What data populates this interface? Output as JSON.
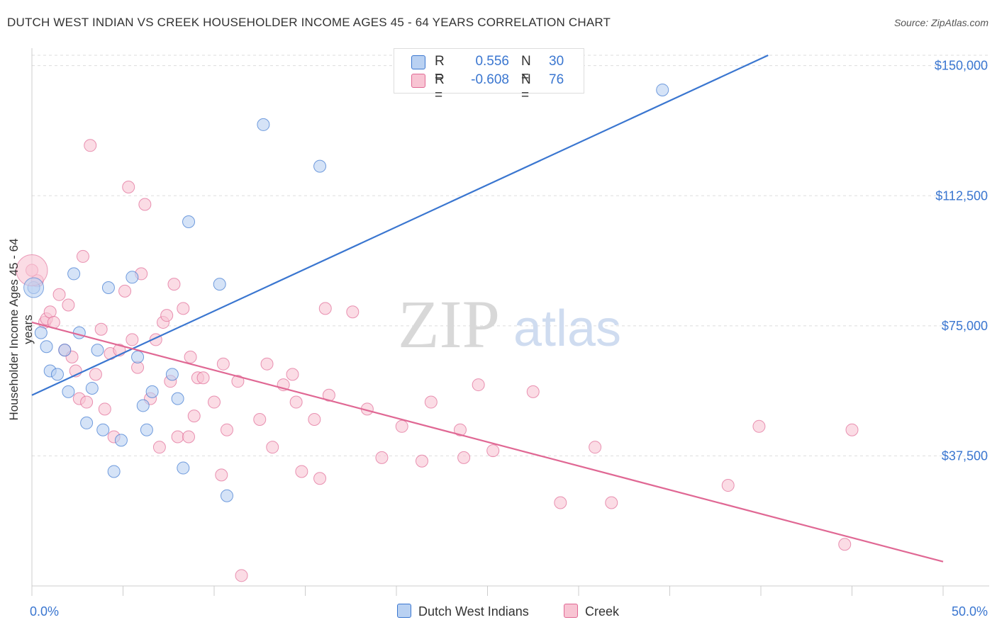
{
  "title": "DUTCH WEST INDIAN VS CREEK HOUSEHOLDER INCOME AGES 45 - 64 YEARS CORRELATION CHART",
  "source": "Source: ZipAtlas.com",
  "watermark": {
    "zip": "ZIP",
    "atlas": "atlas"
  },
  "colors": {
    "blue": "#3a76d0",
    "blue_fill": "#b9d1f2",
    "pink": "#e06894",
    "pink_fill": "#f8c4d3",
    "axis_text_blue": "#3a76d0",
    "grid": "#dddddd"
  },
  "legend": {
    "rows": [
      {
        "r_label": "R =",
        "r_value": "0.556",
        "n_label": "N =",
        "n_value": "30"
      },
      {
        "r_label": "R =",
        "r_value": "-0.608",
        "n_label": "N =",
        "n_value": "76"
      }
    ]
  },
  "bottom_legend": [
    "Dutch West Indians",
    "Creek"
  ],
  "chart_data": {
    "type": "scatter",
    "title": "DUTCH WEST INDIAN VS CREEK HOUSEHOLDER INCOME AGES 45 - 64 YEARS CORRELATION CHART",
    "xlabel": "",
    "ylabel": "Householder Income Ages 45 - 64 years",
    "xlim": [
      0,
      50
    ],
    "ylim": [
      0,
      153000
    ],
    "x_tick_labels": [
      "0.0%",
      "50.0%"
    ],
    "y_ticks": [
      37500,
      75000,
      112500,
      150000
    ],
    "y_tick_labels": [
      "$37,500",
      "$75,000",
      "$112,500",
      "$150,000"
    ],
    "series": [
      {
        "name": "Dutch West Indians",
        "r": 0.556,
        "n": 30,
        "trend": {
          "x": [
            0,
            40.4
          ],
          "y": [
            55000,
            153000
          ]
        },
        "points": [
          [
            0.1,
            86000
          ],
          [
            0.5,
            73000
          ],
          [
            0.8,
            69000
          ],
          [
            1.0,
            62000
          ],
          [
            1.4,
            61000
          ],
          [
            1.8,
            68000
          ],
          [
            2.0,
            56000
          ],
          [
            2.3,
            90000
          ],
          [
            2.6,
            73000
          ],
          [
            3.0,
            47000
          ],
          [
            3.3,
            57000
          ],
          [
            3.6,
            68000
          ],
          [
            3.9,
            45000
          ],
          [
            4.2,
            86000
          ],
          [
            4.5,
            33000
          ],
          [
            4.9,
            42000
          ],
          [
            5.5,
            89000
          ],
          [
            5.8,
            66000
          ],
          [
            6.1,
            52000
          ],
          [
            6.3,
            45000
          ],
          [
            6.6,
            56000
          ],
          [
            7.7,
            61000
          ],
          [
            8.0,
            54000
          ],
          [
            8.3,
            34000
          ],
          [
            8.6,
            105000
          ],
          [
            10.3,
            87000
          ],
          [
            10.7,
            26000
          ],
          [
            12.7,
            133000
          ],
          [
            15.8,
            121000
          ],
          [
            34.6,
            143000
          ]
        ]
      },
      {
        "name": "Creek",
        "r": -0.608,
        "n": 76,
        "trend": {
          "x": [
            0,
            50
          ],
          "y": [
            76000,
            7000
          ]
        },
        "points": [
          [
            0.0,
            91000
          ],
          [
            0.3,
            88000
          ],
          [
            0.7,
            76000
          ],
          [
            0.8,
            77000
          ],
          [
            1.0,
            79000
          ],
          [
            1.2,
            76000
          ],
          [
            1.5,
            84000
          ],
          [
            1.8,
            68000
          ],
          [
            2.0,
            81000
          ],
          [
            2.2,
            66000
          ],
          [
            2.4,
            62000
          ],
          [
            2.6,
            54000
          ],
          [
            2.8,
            95000
          ],
          [
            3.0,
            53000
          ],
          [
            3.2,
            127000
          ],
          [
            3.5,
            61000
          ],
          [
            3.8,
            74000
          ],
          [
            4.0,
            51000
          ],
          [
            4.3,
            67000
          ],
          [
            4.5,
            43000
          ],
          [
            4.8,
            68000
          ],
          [
            5.1,
            85000
          ],
          [
            5.3,
            115000
          ],
          [
            5.5,
            71000
          ],
          [
            5.8,
            63000
          ],
          [
            6.0,
            90000
          ],
          [
            6.2,
            110000
          ],
          [
            6.5,
            54000
          ],
          [
            6.8,
            71000
          ],
          [
            7.0,
            40000
          ],
          [
            7.2,
            76000
          ],
          [
            7.4,
            78000
          ],
          [
            7.6,
            59000
          ],
          [
            7.8,
            87000
          ],
          [
            8.0,
            43000
          ],
          [
            8.3,
            80000
          ],
          [
            8.6,
            43000
          ],
          [
            8.7,
            66000
          ],
          [
            8.9,
            49000
          ],
          [
            9.1,
            60000
          ],
          [
            9.4,
            60000
          ],
          [
            10.0,
            53000
          ],
          [
            10.4,
            32000
          ],
          [
            10.5,
            64000
          ],
          [
            10.7,
            45000
          ],
          [
            11.3,
            59000
          ],
          [
            11.5,
            3000
          ],
          [
            12.5,
            48000
          ],
          [
            12.9,
            64000
          ],
          [
            13.2,
            40000
          ],
          [
            13.8,
            58000
          ],
          [
            14.3,
            61000
          ],
          [
            14.5,
            53000
          ],
          [
            14.8,
            33000
          ],
          [
            15.5,
            48000
          ],
          [
            15.8,
            31000
          ],
          [
            16.1,
            80000
          ],
          [
            16.3,
            55000
          ],
          [
            17.6,
            79000
          ],
          [
            18.4,
            51000
          ],
          [
            19.2,
            37000
          ],
          [
            20.3,
            46000
          ],
          [
            21.4,
            36000
          ],
          [
            21.9,
            53000
          ],
          [
            23.5,
            45000
          ],
          [
            23.7,
            37000
          ],
          [
            24.5,
            58000
          ],
          [
            25.3,
            39000
          ],
          [
            27.5,
            56000
          ],
          [
            29.0,
            24000
          ],
          [
            30.9,
            40000
          ],
          [
            31.8,
            24000
          ],
          [
            38.2,
            29000
          ],
          [
            39.9,
            46000
          ],
          [
            44.6,
            12000
          ],
          [
            45.0,
            45000
          ]
        ]
      }
    ]
  }
}
